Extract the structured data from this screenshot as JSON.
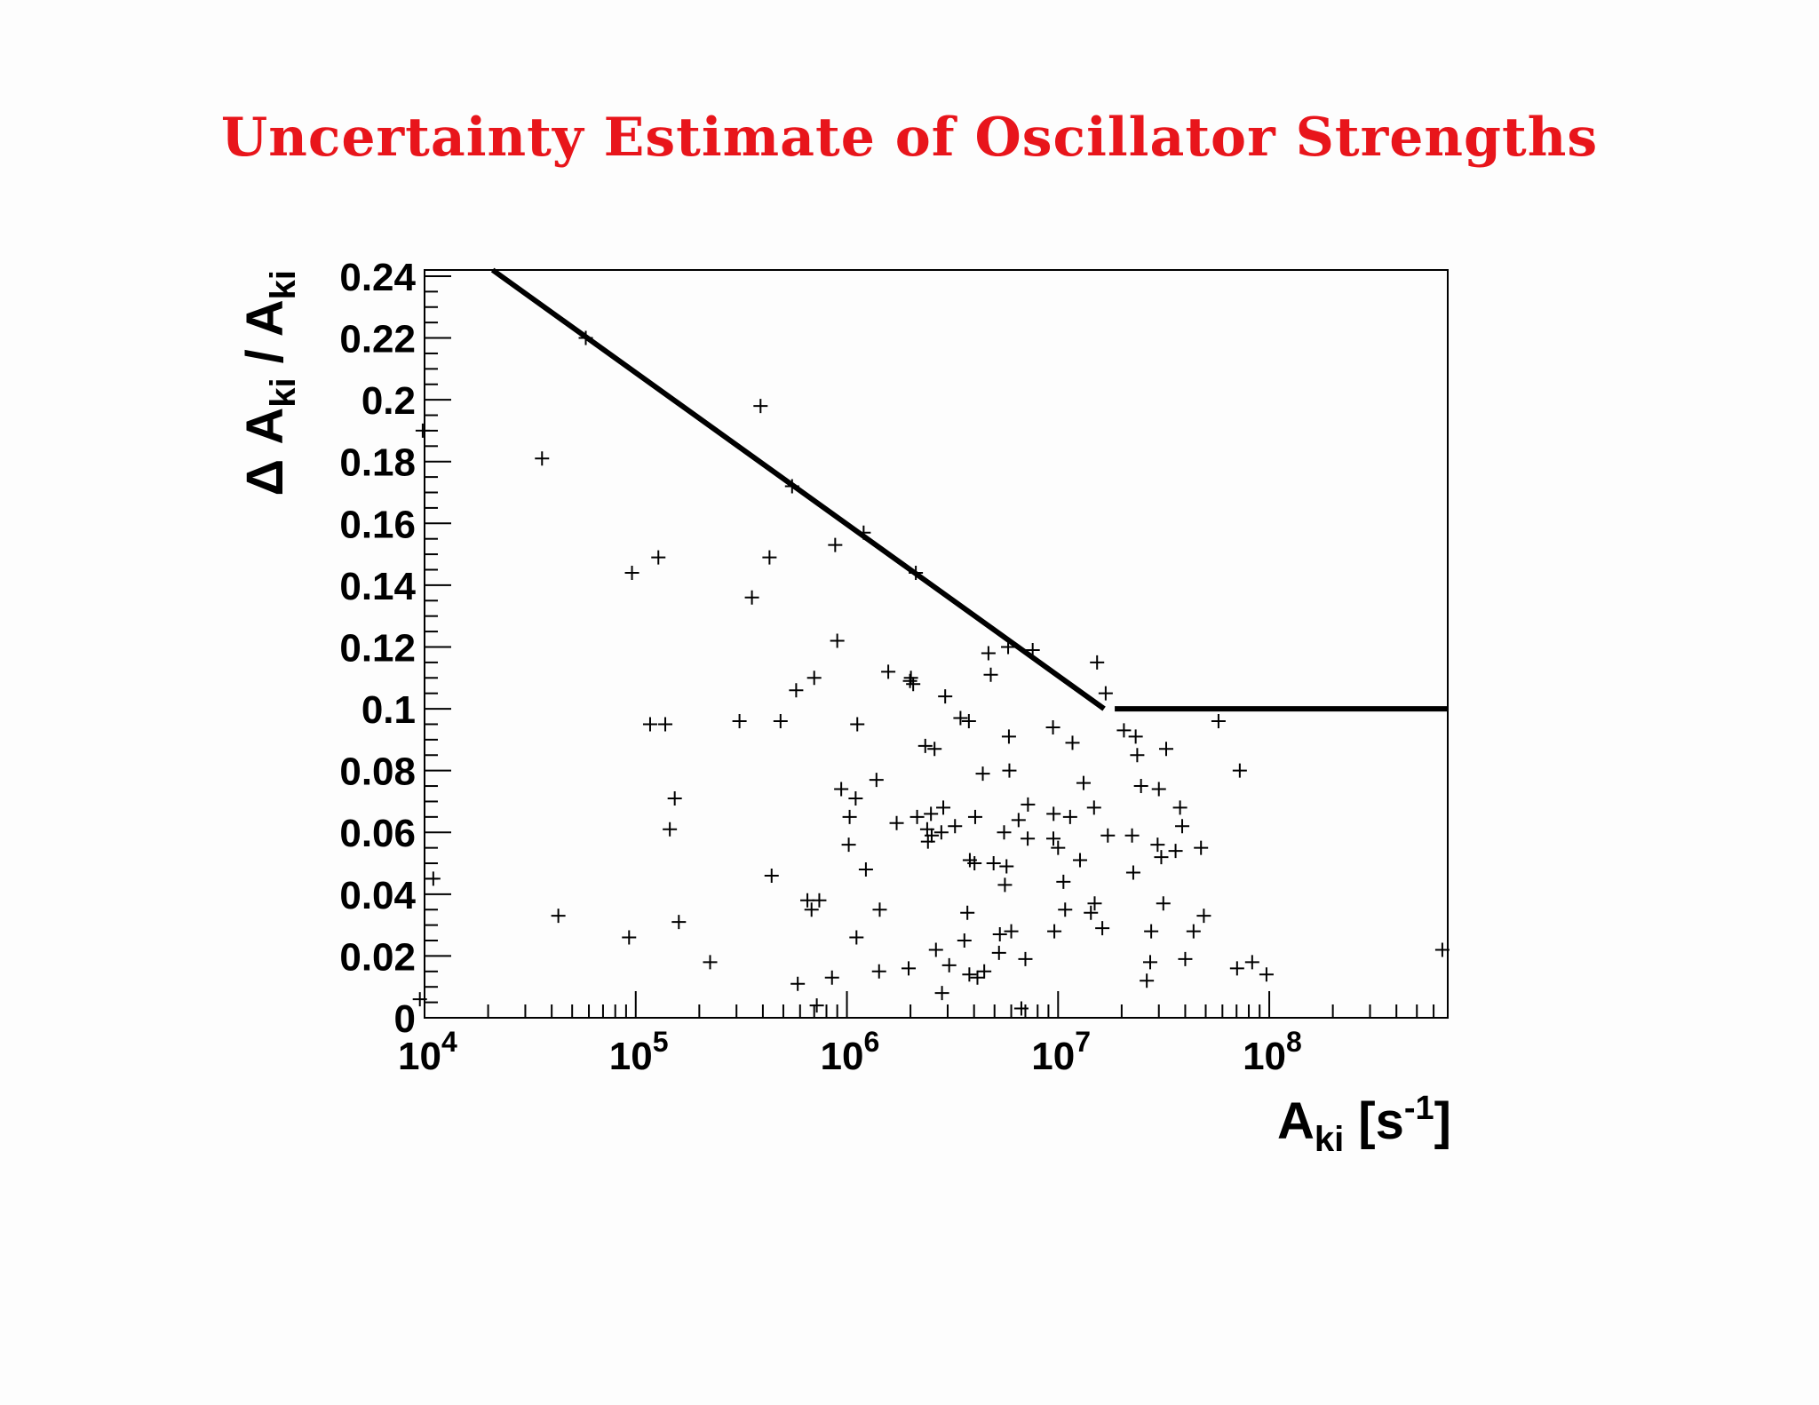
{
  "title": "Uncertainty Estimate of Oscillator Strengths",
  "colors": {
    "title": "#e8151b",
    "axes": "#000000",
    "background": "#fdfdfd"
  },
  "chart_data": {
    "type": "scatter",
    "title": "Uncertainty Estimate of Oscillator Strengths",
    "xlabel": {
      "base": "A",
      "sub": "ki",
      "unit_open": " [s",
      "unit_sup": "-1",
      "unit_close": "]"
    },
    "ylabel": {
      "prefix": "Δ A",
      "sub1": "ki",
      "mid": " / A",
      "sub2": "ki"
    },
    "xscale": "log",
    "xlim": [
      10000,
      700000000
    ],
    "ylim": [
      0,
      0.242
    ],
    "xticks": [
      {
        "value": 10000,
        "base": "10",
        "exp": "4"
      },
      {
        "value": 100000,
        "base": "10",
        "exp": "5"
      },
      {
        "value": 1000000,
        "base": "10",
        "exp": "6"
      },
      {
        "value": 10000000,
        "base": "10",
        "exp": "7"
      },
      {
        "value": 100000000,
        "base": "10",
        "exp": "8"
      }
    ],
    "yticks": [
      {
        "value": 0,
        "label": "0"
      },
      {
        "value": 0.02,
        "label": "0.02"
      },
      {
        "value": 0.04,
        "label": "0.04"
      },
      {
        "value": 0.06,
        "label": "0.06"
      },
      {
        "value": 0.08,
        "label": "0.08"
      },
      {
        "value": 0.1,
        "label": "0.1"
      },
      {
        "value": 0.12,
        "label": "0.12"
      },
      {
        "value": 0.14,
        "label": "0.14"
      },
      {
        "value": 0.16,
        "label": "0.16"
      },
      {
        "value": 0.18,
        "label": "0.18"
      },
      {
        "value": 0.2,
        "label": "0.2"
      },
      {
        "value": 0.22,
        "label": "0.22"
      },
      {
        "value": 0.24,
        "label": "0.24"
      }
    ],
    "grid": false,
    "legend": "none",
    "limit_curve": [
      [
        21000,
        0.242
      ],
      [
        17500000,
        0.1
      ],
      [
        700000000,
        0.1
      ]
    ],
    "points": [
      [
        9800,
        0.19
      ],
      [
        9500,
        0.006
      ],
      [
        11000,
        0.045
      ],
      [
        36000,
        0.181
      ],
      [
        43000,
        0.033
      ],
      [
        58000,
        0.22
      ],
      [
        93000,
        0.026
      ],
      [
        96000,
        0.144
      ],
      [
        117000,
        0.095
      ],
      [
        128000,
        0.149
      ],
      [
        138000,
        0.095
      ],
      [
        145000,
        0.061
      ],
      [
        153000,
        0.071
      ],
      [
        160000,
        0.031
      ],
      [
        225000,
        0.018
      ],
      [
        310000,
        0.096
      ],
      [
        355000,
        0.136
      ],
      [
        390000,
        0.198
      ],
      [
        430000,
        0.149
      ],
      [
        440000,
        0.046
      ],
      [
        485000,
        0.096
      ],
      [
        550000,
        0.172
      ],
      [
        575000,
        0.106
      ],
      [
        585000,
        0.011
      ],
      [
        650000,
        0.038
      ],
      [
        680000,
        0.035
      ],
      [
        700000,
        0.11
      ],
      [
        720000,
        0.004
      ],
      [
        740000,
        0.038
      ],
      [
        850000,
        0.013
      ],
      [
        880000,
        0.153
      ],
      [
        900000,
        0.122
      ],
      [
        940000,
        0.074
      ],
      [
        1020000,
        0.056
      ],
      [
        1030000,
        0.065
      ],
      [
        1100000,
        0.071
      ],
      [
        1110000,
        0.026
      ],
      [
        1120000,
        0.095
      ],
      [
        1200000,
        0.157
      ],
      [
        1230000,
        0.048
      ],
      [
        1380000,
        0.077
      ],
      [
        1420000,
        0.015
      ],
      [
        1430000,
        0.035
      ],
      [
        1570000,
        0.112
      ],
      [
        1720000,
        0.063
      ],
      [
        1960000,
        0.016
      ],
      [
        1990000,
        0.109
      ],
      [
        2010000,
        0.11
      ],
      [
        2060000,
        0.108
      ],
      [
        2120000,
        0.144
      ],
      [
        2150000,
        0.065
      ],
      [
        2350000,
        0.088
      ],
      [
        2400000,
        0.061
      ],
      [
        2420000,
        0.057
      ],
      [
        2500000,
        0.066
      ],
      [
        2520000,
        0.059
      ],
      [
        2600000,
        0.087
      ],
      [
        2640000,
        0.022
      ],
      [
        2800000,
        0.06
      ],
      [
        2820000,
        0.008
      ],
      [
        2860000,
        0.068
      ],
      [
        2920000,
        0.104
      ],
      [
        3050000,
        0.017
      ],
      [
        3250000,
        0.062
      ],
      [
        3450000,
        0.097
      ],
      [
        3600000,
        0.025
      ],
      [
        3720000,
        0.034
      ],
      [
        3780000,
        0.096
      ],
      [
        3800000,
        0.014
      ],
      [
        3820000,
        0.051
      ],
      [
        4020000,
        0.05
      ],
      [
        4050000,
        0.065
      ],
      [
        4150000,
        0.013
      ],
      [
        4400000,
        0.079
      ],
      [
        4470000,
        0.015
      ],
      [
        4680000,
        0.118
      ],
      [
        4800000,
        0.111
      ],
      [
        4950000,
        0.05
      ],
      [
        5250000,
        0.021
      ],
      [
        5300000,
        0.027
      ],
      [
        5550000,
        0.06
      ],
      [
        5600000,
        0.043
      ],
      [
        5700000,
        0.049
      ],
      [
        5800000,
        0.12
      ],
      [
        5850000,
        0.091
      ],
      [
        5880000,
        0.08
      ],
      [
        6000000,
        0.028
      ],
      [
        6500000,
        0.064
      ],
      [
        6700000,
        0.003
      ],
      [
        7000000,
        0.019
      ],
      [
        7180000,
        0.058
      ],
      [
        7200000,
        0.069
      ],
      [
        7580000,
        0.119
      ],
      [
        9460000,
        0.094
      ],
      [
        9500000,
        0.058
      ],
      [
        9520000,
        0.066
      ],
      [
        9600000,
        0.028
      ],
      [
        10000000,
        0.055
      ],
      [
        10600000,
        0.044
      ],
      [
        10800000,
        0.035
      ],
      [
        11400000,
        0.065
      ],
      [
        11700000,
        0.089
      ],
      [
        12700000,
        0.051
      ],
      [
        13200000,
        0.076
      ],
      [
        14300000,
        0.034
      ],
      [
        14800000,
        0.068
      ],
      [
        14900000,
        0.037
      ],
      [
        15300000,
        0.115
      ],
      [
        16200000,
        0.029
      ],
      [
        16800000,
        0.105
      ],
      [
        17200000,
        0.059
      ],
      [
        20500000,
        0.093
      ],
      [
        22400000,
        0.059
      ],
      [
        22700000,
        0.047
      ],
      [
        23300000,
        0.091
      ],
      [
        23700000,
        0.085
      ],
      [
        24700000,
        0.075
      ],
      [
        26300000,
        0.012
      ],
      [
        27300000,
        0.018
      ],
      [
        27600000,
        0.028
      ],
      [
        29600000,
        0.056
      ],
      [
        30000000,
        0.074
      ],
      [
        30800000,
        0.052
      ],
      [
        31500000,
        0.037
      ],
      [
        32500000,
        0.087
      ],
      [
        36000000,
        0.054
      ],
      [
        37800000,
        0.068
      ],
      [
        38700000,
        0.062
      ],
      [
        40000000,
        0.019
      ],
      [
        43800000,
        0.028
      ],
      [
        47500000,
        0.055
      ],
      [
        49000000,
        0.033
      ],
      [
        57500000,
        0.096
      ],
      [
        70400000,
        0.016
      ],
      [
        72500000,
        0.08
      ],
      [
        83000000,
        0.018
      ],
      [
        97000000,
        0.014
      ],
      [
        660000000,
        0.022
      ]
    ]
  }
}
